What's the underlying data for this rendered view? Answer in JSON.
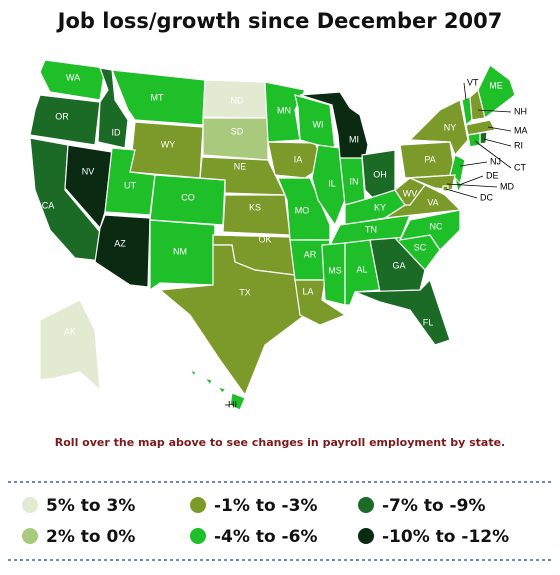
{
  "title": "Job loss/growth since December 2007",
  "map": {
    "states": [
      {
        "label": "WA",
        "color": "#1fbf2a"
      },
      {
        "label": "OR",
        "color": "#1b6b27"
      },
      {
        "label": "CA",
        "color": "#1b6b27"
      },
      {
        "label": "NV",
        "color": "#0a2b12"
      },
      {
        "label": "ID",
        "color": "#1b6b27"
      },
      {
        "label": "MT",
        "color": "#1fbf2a"
      },
      {
        "label": "WY",
        "color": "#7c9a2a"
      },
      {
        "label": "UT",
        "color": "#1fbf2a"
      },
      {
        "label": "AZ",
        "color": "#0a2b12"
      },
      {
        "label": "CO",
        "color": "#1fbf2a"
      },
      {
        "label": "NM",
        "color": "#1fbf2a"
      },
      {
        "label": "ND",
        "color": "#e3ead2"
      },
      {
        "label": "SD",
        "color": "#a9c97c"
      },
      {
        "label": "NE",
        "color": "#7c9a2a"
      },
      {
        "label": "KS",
        "color": "#7c9a2a"
      },
      {
        "label": "OK",
        "color": "#7c9a2a"
      },
      {
        "label": "TX",
        "color": "#7c9a2a"
      },
      {
        "label": "MN",
        "color": "#1fbf2a"
      },
      {
        "label": "IA",
        "color": "#7c9a2a"
      },
      {
        "label": "MO",
        "color": "#1fbf2a"
      },
      {
        "label": "AR",
        "color": "#1fbf2a"
      },
      {
        "label": "LA",
        "color": "#7c9a2a"
      },
      {
        "label": "WI",
        "color": "#1fbf2a"
      },
      {
        "label": "IL",
        "color": "#1fbf2a"
      },
      {
        "label": "MI",
        "color": "#0a2b12"
      },
      {
        "label": "IN",
        "color": "#1fbf2a"
      },
      {
        "label": "OH",
        "color": "#1b6b27"
      },
      {
        "label": "KY",
        "color": "#1fbf2a"
      },
      {
        "label": "TN",
        "color": "#1fbf2a"
      },
      {
        "label": "MS",
        "color": "#1fbf2a"
      },
      {
        "label": "AL",
        "color": "#1fbf2a"
      },
      {
        "label": "GA",
        "color": "#1b6b27"
      },
      {
        "label": "FL",
        "color": "#1b6b27"
      },
      {
        "label": "SC",
        "color": "#1fbf2a"
      },
      {
        "label": "NC",
        "color": "#1fbf2a"
      },
      {
        "label": "VA",
        "color": "#7c9a2a"
      },
      {
        "label": "WV",
        "color": "#7c9a2a"
      },
      {
        "label": "PA",
        "color": "#7c9a2a"
      },
      {
        "label": "NY",
        "color": "#7c9a2a"
      },
      {
        "label": "ME",
        "color": "#1fbf2a"
      },
      {
        "label": "VT",
        "color": "#1fbf2a"
      },
      {
        "label": "NH",
        "color": "#7c9a2a"
      },
      {
        "label": "MA",
        "color": "#7c9a2a"
      },
      {
        "label": "RI",
        "color": "#1b6b27"
      },
      {
        "label": "CT",
        "color": "#1fbf2a"
      },
      {
        "label": "NJ",
        "color": "#1fbf2a"
      },
      {
        "label": "DE",
        "color": "#1fbf2a"
      },
      {
        "label": "MD",
        "color": "#7c9a2a"
      },
      {
        "label": "DC",
        "color": "#7c9a2a"
      },
      {
        "label": "AK",
        "color": "#e3ead2"
      },
      {
        "label": "HI",
        "color": "#1fbf2a"
      }
    ]
  },
  "note": "Roll over the map above to see changes in payroll employment by state.",
  "legend": [
    {
      "label": "5% to 3%",
      "color": "#e3ead2"
    },
    {
      "label": "2% to 0%",
      "color": "#a9c97c"
    },
    {
      "label": "-1% to -3%",
      "color": "#7c9a2a"
    },
    {
      "label": "-4% to -6%",
      "color": "#1fbf2a"
    },
    {
      "label": "-7% to -9%",
      "color": "#1b6b27"
    },
    {
      "label": "-10% to -12%",
      "color": "#0a2b12"
    }
  ]
}
